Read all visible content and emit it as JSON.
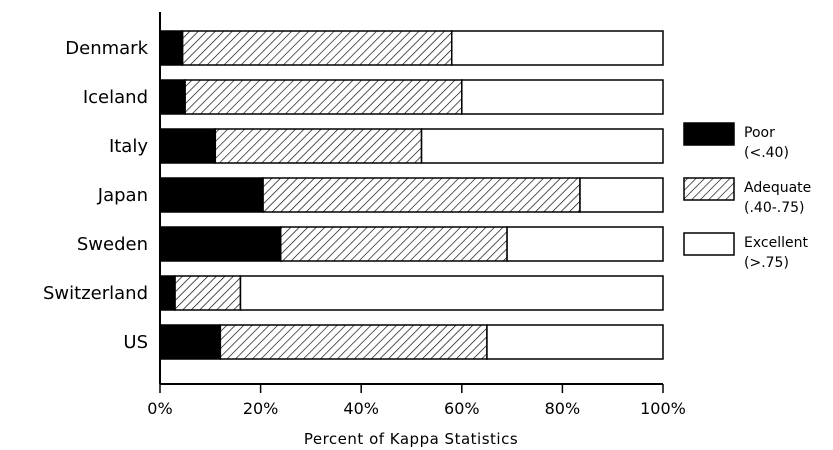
{
  "chart_data": {
    "type": "bar",
    "orientation": "horizontal",
    "stacked": true,
    "categories": [
      "Denmark",
      "Iceland",
      "Italy",
      "Japan",
      "Sweden",
      "Switzerland",
      "US"
    ],
    "series": [
      {
        "name": "Poor (<.40)",
        "label_line1": "Poor",
        "label_line2": "(<.40)",
        "fill": "solid-black",
        "values": [
          4.5,
          5,
          11,
          20.5,
          24,
          3,
          12
        ]
      },
      {
        "name": "Adequate (.40-.75)",
        "label_line1": "Adequate",
        "label_line2": "(.40-.75)",
        "fill": "diagonal-hatch",
        "values": [
          53.5,
          55,
          41,
          63,
          45,
          13,
          53
        ]
      },
      {
        "name": "Excellent (>.75)",
        "label_line1": "Excellent",
        "label_line2": "(>.75)",
        "fill": "white",
        "values": [
          42,
          40,
          48,
          16.5,
          31,
          84,
          35
        ]
      }
    ],
    "xlabel": "Percent of Kappa Statistics",
    "ylabel": "",
    "title": "",
    "xlim": [
      0,
      100
    ],
    "x_ticks": [
      "0%",
      "20%",
      "40%",
      "60%",
      "80%",
      "100%"
    ],
    "grid": false,
    "legend_position": "right"
  }
}
